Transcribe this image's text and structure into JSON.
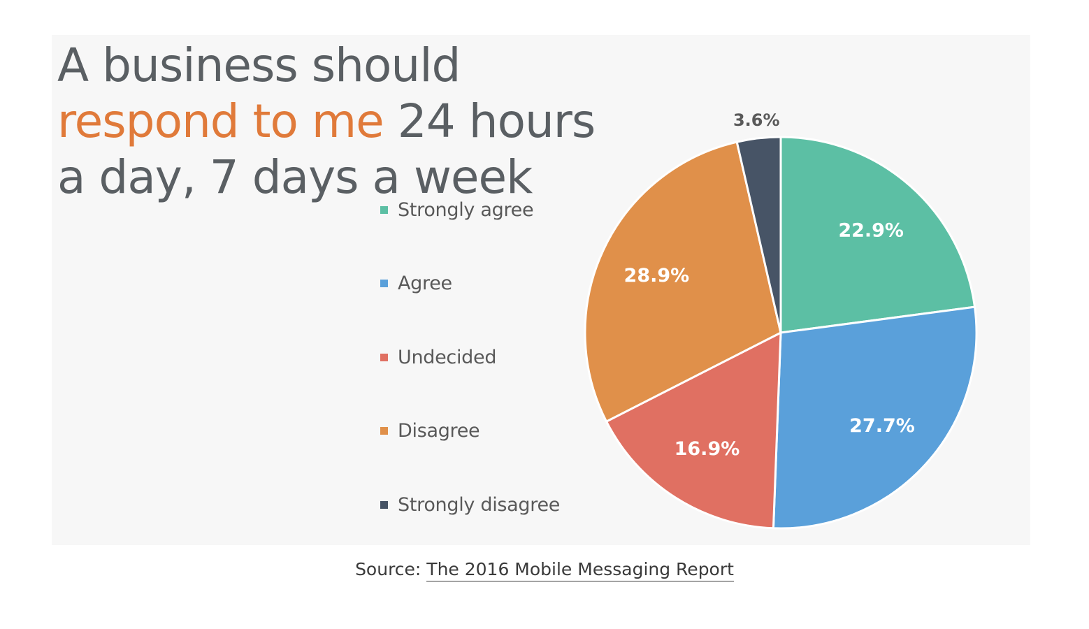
{
  "title": {
    "part1": "A business should ",
    "highlight": "respond to me",
    "part2": " 24 hours a day, 7 days a week"
  },
  "chart_data": {
    "type": "pie",
    "categories": [
      "Strongly agree",
      "Agree",
      "Undecided",
      "Disagree",
      "Strongly disagree"
    ],
    "values": [
      22.9,
      27.7,
      16.9,
      28.9,
      3.6
    ],
    "data_labels": [
      "22.9%",
      "27.7%",
      "16.9%",
      "28.9%",
      "3.6%"
    ],
    "colors": [
      "#5cbfa4",
      "#5aa0da",
      "#e07062",
      "#e0904a",
      "#475466"
    ],
    "legend_position": "left",
    "start_angle": "12 o'clock",
    "direction": "clockwise"
  },
  "caption": {
    "prefix": "Source: ",
    "link_text": "The 2016 Mobile Messaging Report"
  },
  "colors": {
    "title_text": "#5a5f63",
    "title_highlight": "#e07a3a",
    "panel_background": "#f7f7f7"
  }
}
